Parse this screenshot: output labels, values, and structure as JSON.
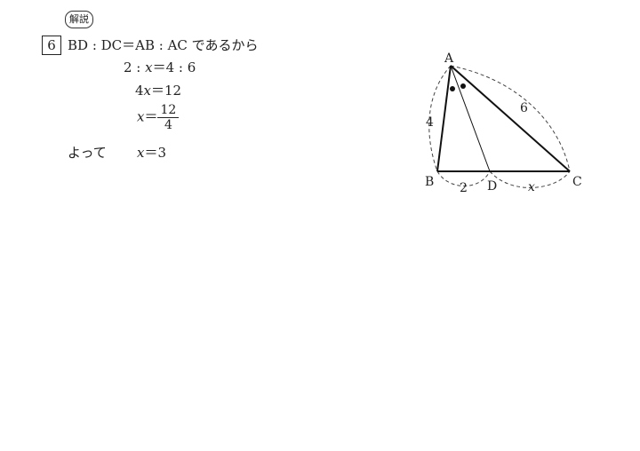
{
  "header": {
    "badge": "解説"
  },
  "problem": {
    "number": "6",
    "statement": "BD : DC＝AB : AC であるから"
  },
  "solution": {
    "step1": {
      "a": "2 : ",
      "var": "x",
      "b": "＝4 : 6"
    },
    "step2": {
      "a": "4",
      "var": "x",
      "b": "＝12"
    },
    "step3": {
      "var": "x",
      "eq": "＝",
      "num": "12",
      "den": "4"
    },
    "conclusion": {
      "prefix": "よって",
      "var": "x",
      "value": "＝3"
    }
  },
  "figure": {
    "vertices": {
      "A": "A",
      "B": "B",
      "C": "C",
      "D": "D"
    },
    "lengths": {
      "AB": "4",
      "AC": "6",
      "BD": "2",
      "DC": "x"
    }
  }
}
